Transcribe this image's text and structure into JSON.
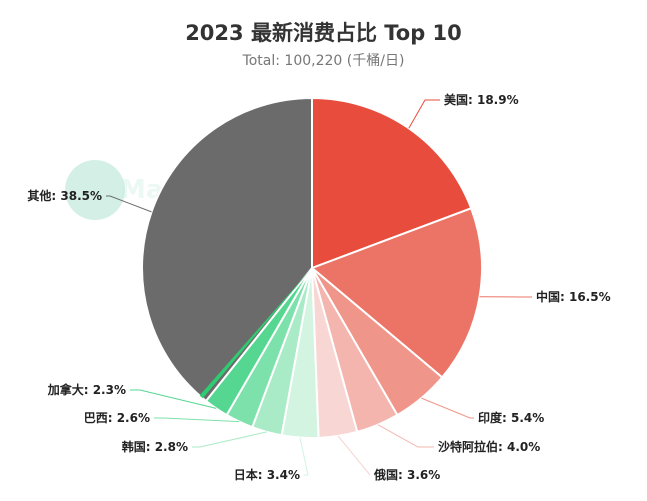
{
  "chart_data": {
    "type": "pie",
    "title": "2023 最新消费占比 Top 10",
    "subtitle": "Total: 100,220 (千桶/日)",
    "watermark": "MacroMicro",
    "slices": [
      {
        "name": "美国",
        "value": 18.9,
        "label": "美国: 18.9%",
        "color": "#e84c3d"
      },
      {
        "name": "中国",
        "value": 16.5,
        "label": "中国: 16.5%",
        "color": "#ec7466"
      },
      {
        "name": "印度",
        "value": 5.4,
        "label": "印度: 5.4%",
        "color": "#f09589"
      },
      {
        "name": "沙特阿拉伯",
        "value": 4.0,
        "label": "沙特阿拉伯: 4.0%",
        "color": "#f4b5ae"
      },
      {
        "name": "俄国",
        "value": 3.6,
        "label": "俄国: 3.6%",
        "color": "#f8d6d3"
      },
      {
        "name": "日本",
        "value": 3.4,
        "label": "日本: 3.4%",
        "color": "#d3f4e1"
      },
      {
        "name": "韩国",
        "value": 2.8,
        "label": "韩国: 2.8%",
        "color": "#aaebc7"
      },
      {
        "name": "巴西",
        "value": 2.6,
        "label": "巴西: 2.6%",
        "color": "#7de1ac"
      },
      {
        "name": "加拿大",
        "value": 2.3,
        "label": "加拿大: 2.3%",
        "color": "#55d791"
      },
      {
        "name": "其他",
        "value": 38.5,
        "label": "其他: 38.5%",
        "color": "#6b6b6b"
      }
    ]
  },
  "extra_colors": {
    "tail_slice": "#2ecc71"
  }
}
